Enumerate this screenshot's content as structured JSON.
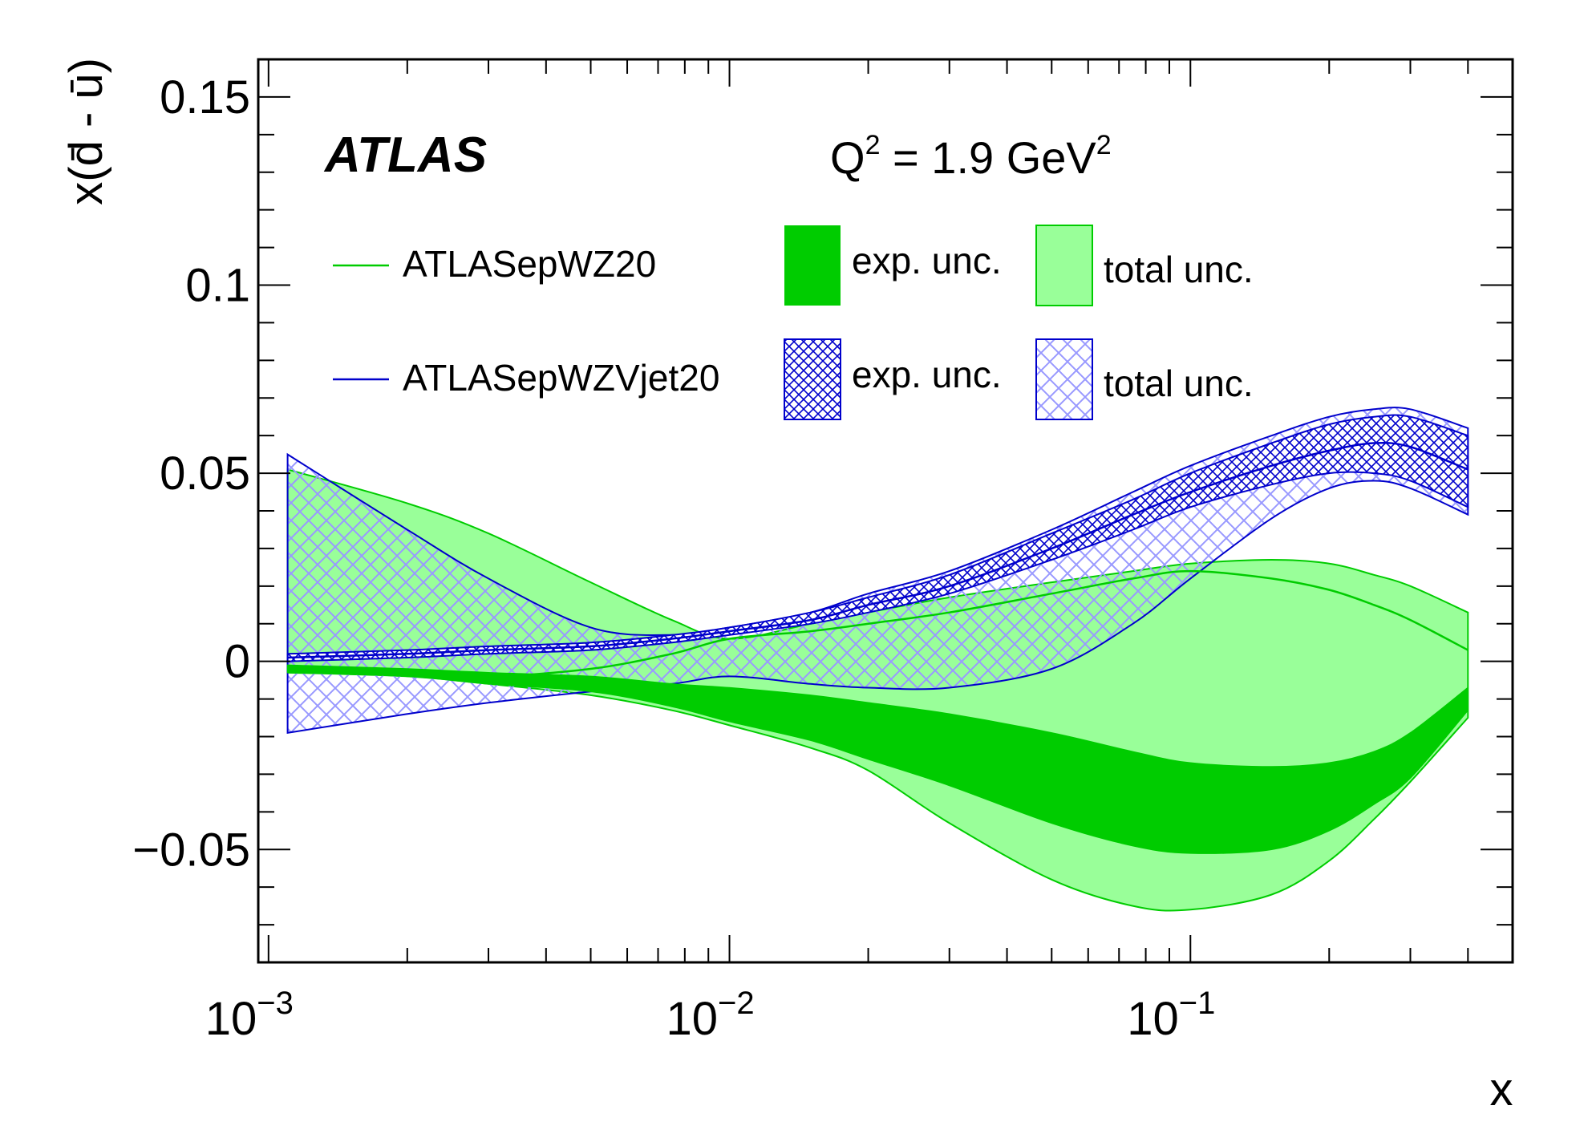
{
  "chart_data": {
    "type": "area",
    "experiment_label": "ATLAS",
    "scale_label": {
      "prefix": "Q",
      "exp1": "2",
      "mid": " = 1.9 GeV",
      "exp2": "2"
    },
    "xlabel": "x",
    "ylabel": "x(d̄ - ū)",
    "xscale": "log",
    "xlim": [
      0.00095,
      0.5
    ],
    "ylim": [
      -0.08,
      0.16
    ],
    "xticks": [
      {
        "value": 0.001,
        "base": "10",
        "exp": "−3"
      },
      {
        "value": 0.01,
        "base": "10",
        "exp": "−2"
      },
      {
        "value": 0.1,
        "base": "10",
        "exp": "−1"
      }
    ],
    "yticks": [
      {
        "value": 0.15,
        "label": "0.15"
      },
      {
        "value": 0.1,
        "label": "0.1"
      },
      {
        "value": 0.05,
        "label": "0.05"
      },
      {
        "value": 0,
        "label": "0"
      },
      {
        "value": -0.05,
        "label": "−0.05"
      }
    ],
    "x": [
      0.0011,
      0.002,
      0.003,
      0.005,
      0.0075,
      0.01,
      0.015,
      0.02,
      0.03,
      0.05,
      0.075,
      0.1,
      0.15,
      0.2,
      0.25,
      0.3,
      0.4
    ],
    "series": [
      {
        "name": "ATLASepWZ20",
        "color": "#00cc00",
        "central": [
          -0.002,
          -0.003,
          -0.004,
          -0.002,
          0.002,
          0.006,
          0.008,
          0.01,
          0.013,
          0.018,
          0.022,
          0.024,
          0.022,
          0.019,
          0.015,
          0.011,
          0.003
        ],
        "exp_upper": [
          -0.001,
          -0.002,
          -0.003,
          -0.004,
          -0.006,
          -0.007,
          -0.009,
          -0.011,
          -0.014,
          -0.019,
          -0.024,
          -0.027,
          -0.028,
          -0.027,
          -0.024,
          -0.019,
          -0.007
        ],
        "exp_lower": [
          -0.003,
          -0.004,
          -0.006,
          -0.008,
          -0.012,
          -0.016,
          -0.021,
          -0.026,
          -0.033,
          -0.043,
          -0.049,
          -0.051,
          -0.05,
          -0.045,
          -0.038,
          -0.031,
          -0.013
        ],
        "total_upper": [
          0.051,
          0.042,
          0.034,
          0.021,
          0.011,
          0.006,
          0.01,
          0.013,
          0.017,
          0.021,
          0.024,
          0.026,
          0.027,
          0.026,
          0.023,
          0.02,
          0.013
        ],
        "total_lower": [
          -0.003,
          -0.004,
          -0.006,
          -0.009,
          -0.013,
          -0.017,
          -0.023,
          -0.029,
          -0.043,
          -0.058,
          -0.065,
          -0.066,
          -0.062,
          -0.053,
          -0.042,
          -0.032,
          -0.015
        ]
      },
      {
        "name": "ATLASepWZVjet20",
        "color": "#0000cc",
        "central": [
          0.001,
          0.002,
          0.003,
          0.004,
          0.006,
          0.008,
          0.011,
          0.015,
          0.02,
          0.03,
          0.039,
          0.045,
          0.052,
          0.056,
          0.058,
          0.057,
          0.051
        ],
        "exp_upper": [
          0.002,
          0.003,
          0.004,
          0.005,
          0.007,
          0.009,
          0.013,
          0.017,
          0.023,
          0.034,
          0.043,
          0.05,
          0.058,
          0.063,
          0.065,
          0.065,
          0.06
        ],
        "exp_lower": [
          0.0,
          0.001,
          0.002,
          0.003,
          0.005,
          0.007,
          0.01,
          0.013,
          0.018,
          0.027,
          0.035,
          0.041,
          0.047,
          0.05,
          0.05,
          0.048,
          0.041
        ],
        "total_upper": [
          0.055,
          0.035,
          0.022,
          0.009,
          0.007,
          0.009,
          0.013,
          0.018,
          0.024,
          0.035,
          0.045,
          0.052,
          0.06,
          0.065,
          0.067,
          0.067,
          0.062
        ],
        "total_lower": [
          -0.019,
          -0.014,
          -0.011,
          -0.008,
          -0.006,
          -0.004,
          -0.006,
          -0.007,
          -0.007,
          -0.002,
          0.01,
          0.022,
          0.038,
          0.046,
          0.048,
          0.046,
          0.039
        ]
      }
    ],
    "legend": {
      "position": "top",
      "lines": [
        {
          "label": "ATLASepWZ20",
          "color": "#00cc00"
        },
        {
          "label": "ATLASepWZVjet20",
          "color": "#0000cc"
        }
      ],
      "bands": [
        {
          "label": "exp. unc.",
          "style": "solid-green"
        },
        {
          "label": "total unc.",
          "style": "light-green"
        },
        {
          "label": "exp. unc.",
          "style": "dense-blue-hatch"
        },
        {
          "label": "total unc.",
          "style": "light-blue-hatch"
        }
      ]
    },
    "colors": {
      "green_exp": "#00cc00",
      "green_total": "#99ff99",
      "blue_line": "#0000cc",
      "blue_exp_hatch": "#0000cc",
      "blue_total_hatch": "#9999ff"
    }
  }
}
